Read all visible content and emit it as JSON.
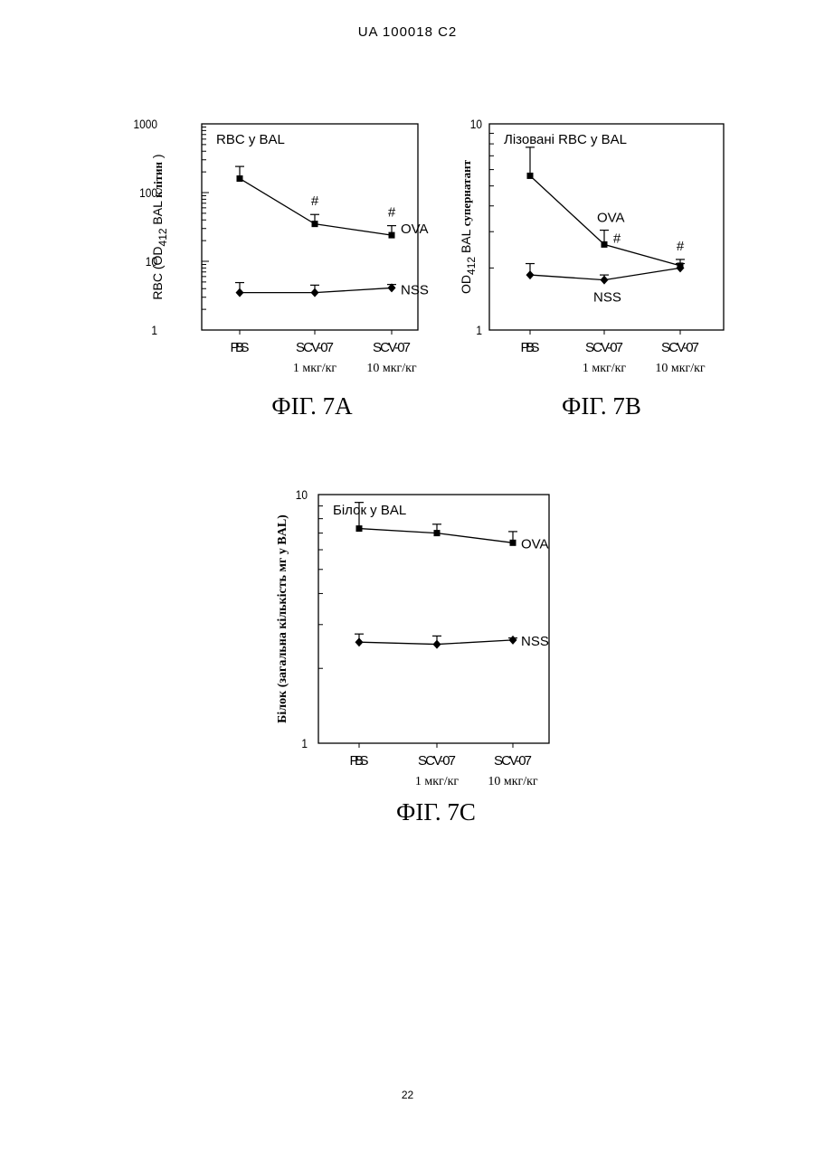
{
  "header": "UA   100018   C2",
  "page_number": "22",
  "chart_data": [
    {
      "id": "a",
      "type": "line",
      "figure_label": "ФІГ. 7A",
      "inner_title": "RBC у BAL",
      "ylabel": "RBC (OD412 BAL клітин)",
      "ylabel_parts": {
        "pre": "RBC (OD",
        "sub": "412",
        "mid": " BAL ",
        "suffix": "клітин",
        "close": ")"
      },
      "yscale": "log",
      "ylim": [
        1,
        1000
      ],
      "yticks": [
        "1",
        "10",
        "100",
        "1000"
      ],
      "categories": [
        "PBS",
        "SCV-07",
        "SCV-07"
      ],
      "category_sublabels": [
        "",
        "1 мкг/кг",
        "10 мкг/кг"
      ],
      "series": [
        {
          "name": "OVA",
          "marker": "square",
          "values": [
            160,
            35,
            24
          ],
          "err_upper": [
            240,
            48,
            33
          ]
        },
        {
          "name": "NSS",
          "marker": "diamond",
          "values": [
            3.5,
            3.5,
            4.1
          ],
          "err_upper": [
            4.9,
            4.5,
            4.6
          ]
        }
      ],
      "annotations": [
        {
          "text": "#",
          "x": "SCV-07 1 мкг/кг",
          "series": "OVA"
        },
        {
          "text": "#",
          "x": "SCV-07 10 мкг/кг",
          "series": "OVA"
        }
      ]
    },
    {
      "id": "b",
      "type": "line",
      "figure_label": "ФІГ. 7В",
      "inner_title": "Лізовані RBC у BAL",
      "ylabel": "OD412 BAL супернатант",
      "ylabel_parts": {
        "pre": "OD",
        "sub": "412",
        "mid": " BAL ",
        "suffix": "супернатант",
        "close": ""
      },
      "yscale": "log",
      "ylim": [
        1,
        10
      ],
      "yticks": [
        "1",
        "10"
      ],
      "categories": [
        "PBS",
        "SCV-07",
        "SCV-07"
      ],
      "category_sublabels": [
        "",
        "1 мкг/кг",
        "10 мкг/кг"
      ],
      "series": [
        {
          "name": "OVA",
          "marker": "square",
          "values": [
            5.6,
            2.6,
            2.05
          ],
          "err_upper": [
            7.7,
            3.05,
            2.2
          ]
        },
        {
          "name": "NSS",
          "marker": "diamond",
          "values": [
            1.85,
            1.75,
            2.0
          ],
          "err_upper": [
            2.1,
            1.85,
            2.1
          ]
        }
      ],
      "annotations": [
        {
          "text": "#",
          "x": "SCV-07 1 мкг/кг",
          "series": "OVA"
        },
        {
          "text": "#",
          "x": "SCV-07 10 мкг/кг",
          "series": "OVA"
        }
      ]
    },
    {
      "id": "c",
      "type": "line",
      "figure_label": "ФІГ. 7С",
      "inner_title": "Білок у BAL",
      "ylabel": "Білок (загальна кількість мг у BAL)",
      "ylabel_parts": {
        "pre": "Білок (загальна кількість мг у BAL)",
        "sub": "",
        "mid": "",
        "suffix": "",
        "close": ""
      },
      "yscale": "log",
      "ylim": [
        1,
        10
      ],
      "yticks": [
        "1",
        "10"
      ],
      "categories": [
        "PBS",
        "SCV-07",
        "SCV-07"
      ],
      "category_sublabels": [
        "",
        "1 мкг/кг",
        "10 мкг/кг"
      ],
      "series": [
        {
          "name": "OVA",
          "marker": "square",
          "values": [
            7.3,
            7.0,
            6.4
          ],
          "err_upper": [
            9.3,
            7.6,
            7.1
          ]
        },
        {
          "name": "NSS",
          "marker": "diamond",
          "values": [
            2.55,
            2.5,
            2.6
          ],
          "err_upper": [
            2.75,
            2.7,
            2.65
          ]
        }
      ],
      "annotations": []
    }
  ]
}
